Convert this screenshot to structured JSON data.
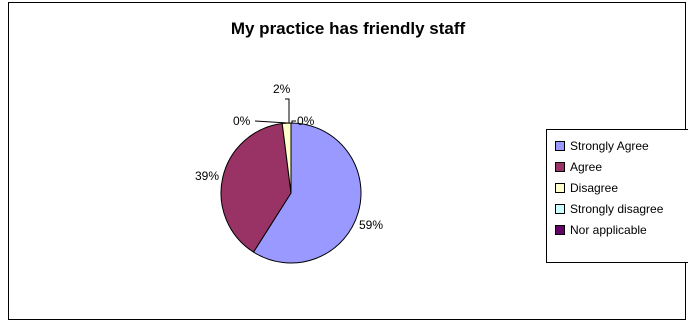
{
  "chart_data": {
    "type": "pie",
    "title": "My practice has friendly staff",
    "slices": [
      {
        "label": "Strongly Agree",
        "value": 59,
        "display": "59%",
        "color": "#9999ff"
      },
      {
        "label": "Agree",
        "value": 39,
        "display": "39%",
        "color": "#993366"
      },
      {
        "label": "Disagree",
        "value": 2,
        "display": "2%",
        "color": "#ffffcc"
      },
      {
        "label": "Strongly disagree",
        "value": 0,
        "display": "0%",
        "color": "#ccffff"
      },
      {
        "label": "Nor applicable",
        "value": 0,
        "display": "0%",
        "color": "#660066"
      }
    ],
    "legend": {
      "position": "right"
    }
  }
}
